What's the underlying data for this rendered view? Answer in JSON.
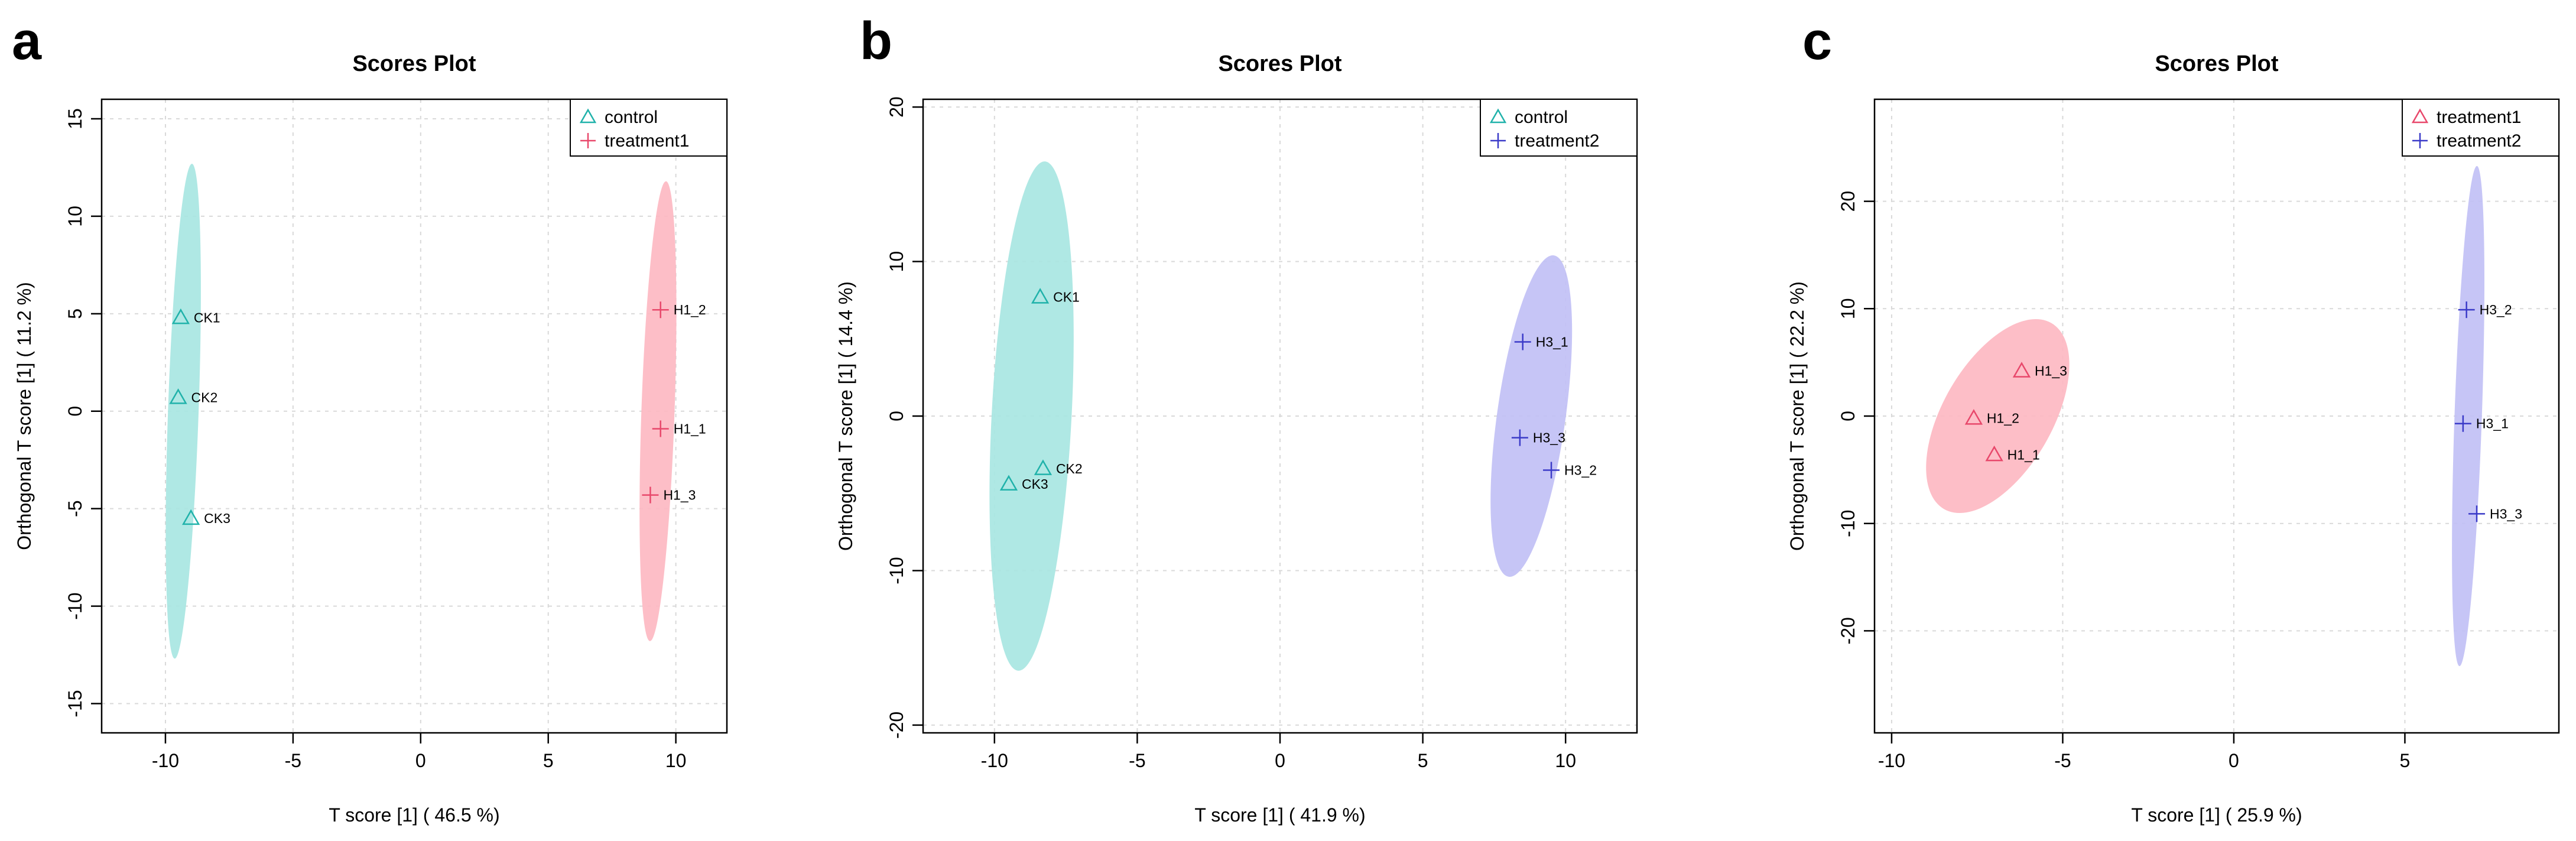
{
  "chart_data": [
    {
      "type": "scatter",
      "panel_letter": "a",
      "title": "Scores Plot",
      "xlabel": "T score [1] ( 46.5 %)",
      "ylabel": "Orthogonal T score [1] ( 11.2 %)",
      "xlim": [
        -12.5,
        12
      ],
      "ylim": [
        -16.5,
        16
      ],
      "xticks": [
        -10,
        -5,
        0,
        5,
        10
      ],
      "yticks": [
        -15,
        -10,
        -5,
        0,
        5,
        10,
        15
      ],
      "legend_position": "top-right",
      "series": [
        {
          "name": "control",
          "marker": "triangle",
          "color": "#20b2aa",
          "fill": "#a6e6e1",
          "points": [
            {
              "label": "CK1",
              "x": -9.4,
              "y": 4.8
            },
            {
              "label": "CK2",
              "x": -9.5,
              "y": 0.7
            },
            {
              "label": "CK3",
              "x": -9.0,
              "y": -5.5
            }
          ],
          "ellipse": {
            "cx": -9.3,
            "cy": 0,
            "rx": 0.6,
            "ry": 12.7,
            "angle": 2
          }
        },
        {
          "name": "treatment1",
          "marker": "plus",
          "color": "#e8486b",
          "fill": "#fdb7c1",
          "points": [
            {
              "label": "H1_2",
              "x": 9.4,
              "y": 5.2
            },
            {
              "label": "H1_1",
              "x": 9.4,
              "y": -0.9
            },
            {
              "label": "H1_3",
              "x": 9.0,
              "y": -4.3
            }
          ],
          "ellipse": {
            "cx": 9.3,
            "cy": 0,
            "rx": 0.65,
            "ry": 11.8,
            "angle": 2
          }
        }
      ]
    },
    {
      "type": "scatter",
      "panel_letter": "b",
      "title": "Scores Plot",
      "xlabel": "T score [1] ( 41.9 %)",
      "ylabel": "Orthogonal T score [1] ( 14.4 %)",
      "xlim": [
        -12.5,
        12.5
      ],
      "ylim": [
        -20.5,
        20.5
      ],
      "xticks": [
        -10,
        -5,
        0,
        5,
        10
      ],
      "yticks": [
        -20,
        -10,
        0,
        10,
        20
      ],
      "legend_position": "top-right",
      "series": [
        {
          "name": "control",
          "marker": "triangle",
          "color": "#20b2aa",
          "fill": "#a6e6e1",
          "points": [
            {
              "label": "CK1",
              "x": -8.4,
              "y": 7.7
            },
            {
              "label": "CK2",
              "x": -8.3,
              "y": -3.4
            },
            {
              "label": "CK3",
              "x": -9.5,
              "y": -4.4
            }
          ],
          "ellipse": {
            "cx": -8.7,
            "cy": 0,
            "rx": 1.4,
            "ry": 16.5,
            "angle": 3
          }
        },
        {
          "name": "treatment2",
          "marker": "plus",
          "color": "#3b3bc8",
          "fill": "#c0bff5",
          "points": [
            {
              "label": "H3_1",
              "x": 8.5,
              "y": 4.8
            },
            {
              "label": "H3_3",
              "x": 8.4,
              "y": -1.4
            },
            {
              "label": "H3_2",
              "x": 9.5,
              "y": -3.5
            }
          ],
          "ellipse": {
            "cx": 8.8,
            "cy": 0,
            "rx": 1.2,
            "ry": 10.5,
            "angle": 8
          }
        }
      ]
    },
    {
      "type": "scatter",
      "panel_letter": "c",
      "title": "Scores Plot",
      "xlabel": "T score [1] ( 25.9 %)",
      "ylabel": "Orthogonal T score [1] ( 22.2 %)",
      "xlim": [
        -10.5,
        9.5
      ],
      "ylim": [
        -29.5,
        29.5
      ],
      "xticks": [
        -10,
        -5,
        0,
        5
      ],
      "yticks": [
        -20,
        -10,
        0,
        10,
        20
      ],
      "legend_position": "top-right",
      "series": [
        {
          "name": "treatment1",
          "marker": "triangle",
          "color": "#e8486b",
          "fill": "#fdb7c1",
          "points": [
            {
              "label": "H1_3",
              "x": -6.2,
              "y": 4.2
            },
            {
              "label": "H1_2",
              "x": -7.6,
              "y": -0.2
            },
            {
              "label": "H1_1",
              "x": -7.0,
              "y": -3.6
            }
          ],
          "ellipse": {
            "cx": -6.9,
            "cy": 0,
            "rx": 1.6,
            "ry": 10.0,
            "angle": 30
          }
        },
        {
          "name": "treatment2",
          "marker": "plus",
          "color": "#3b3bc8",
          "fill": "#c0bff5",
          "points": [
            {
              "label": "H3_2",
              "x": 6.8,
              "y": 9.9
            },
            {
              "label": "H3_1",
              "x": 6.7,
              "y": -0.7
            },
            {
              "label": "H3_3",
              "x": 7.1,
              "y": -9.1
            }
          ],
          "ellipse": {
            "cx": 6.85,
            "cy": 0,
            "rx": 0.4,
            "ry": 23.3,
            "angle": 2
          }
        }
      ]
    }
  ]
}
